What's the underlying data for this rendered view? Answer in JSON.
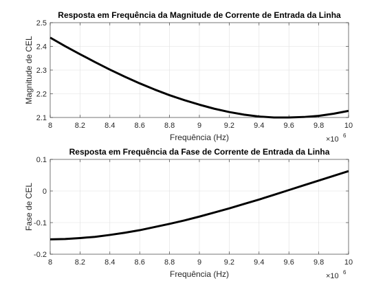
{
  "chart_data": [
    {
      "type": "line",
      "title": "Resposta em Frequência da Magnitude de Corrente de Entrada da Linha",
      "xlabel": "Frequência (Hz)",
      "ylabel": "Magnitude de CEL",
      "x_exponent": {
        "base": "×10",
        "power": "6"
      },
      "xlim": [
        8,
        10
      ],
      "ylim": [
        2.1,
        2.5
      ],
      "xticks": [
        "8",
        "8.2",
        "8.4",
        "8.6",
        "8.8",
        "9",
        "9.2",
        "9.4",
        "9.6",
        "9.8",
        "10"
      ],
      "yticks": [
        "2.1",
        "2.2",
        "2.3",
        "2.4",
        "2.5"
      ],
      "grid": true,
      "line_color": "#000000",
      "series": [
        {
          "x": [
            8.0,
            8.1,
            8.2,
            8.3,
            8.4,
            8.5,
            8.6,
            8.7,
            8.8,
            8.9,
            9.0,
            9.1,
            9.2,
            9.3,
            9.4,
            9.5,
            9.6,
            9.7,
            9.8,
            9.9,
            10.0
          ],
          "values": [
            2.437,
            2.401,
            2.367,
            2.334,
            2.302,
            2.272,
            2.244,
            2.218,
            2.194,
            2.173,
            2.154,
            2.137,
            2.123,
            2.112,
            2.104,
            2.1,
            2.1,
            2.102,
            2.107,
            2.116,
            2.128
          ]
        }
      ]
    },
    {
      "type": "line",
      "title": "Resposta em Frequência da Fase de Corrente de Entrada da Linha",
      "xlabel": "Frequência (Hz)",
      "ylabel": "Fase de CEL",
      "x_exponent": {
        "base": "×10",
        "power": "6"
      },
      "xlim": [
        8,
        10
      ],
      "ylim": [
        -0.2,
        0.1
      ],
      "xticks": [
        "8",
        "8.2",
        "8.4",
        "8.6",
        "8.8",
        "9",
        "9.2",
        "9.4",
        "9.6",
        "9.8",
        "10"
      ],
      "yticks": [
        "-0.2",
        "-0.1",
        "0",
        "0.1"
      ],
      "grid": true,
      "line_color": "#000000",
      "series": [
        {
          "x": [
            8.0,
            8.1,
            8.2,
            8.3,
            8.4,
            8.5,
            8.6,
            8.7,
            8.8,
            8.9,
            9.0,
            9.1,
            9.2,
            9.3,
            9.4,
            9.5,
            9.6,
            9.7,
            9.8,
            9.9,
            10.0
          ],
          "values": [
            -0.153,
            -0.152,
            -0.149,
            -0.145,
            -0.139,
            -0.132,
            -0.124,
            -0.114,
            -0.104,
            -0.093,
            -0.081,
            -0.068,
            -0.055,
            -0.041,
            -0.027,
            -0.012,
            0.003,
            0.018,
            0.033,
            0.048,
            0.063
          ]
        }
      ]
    }
  ]
}
